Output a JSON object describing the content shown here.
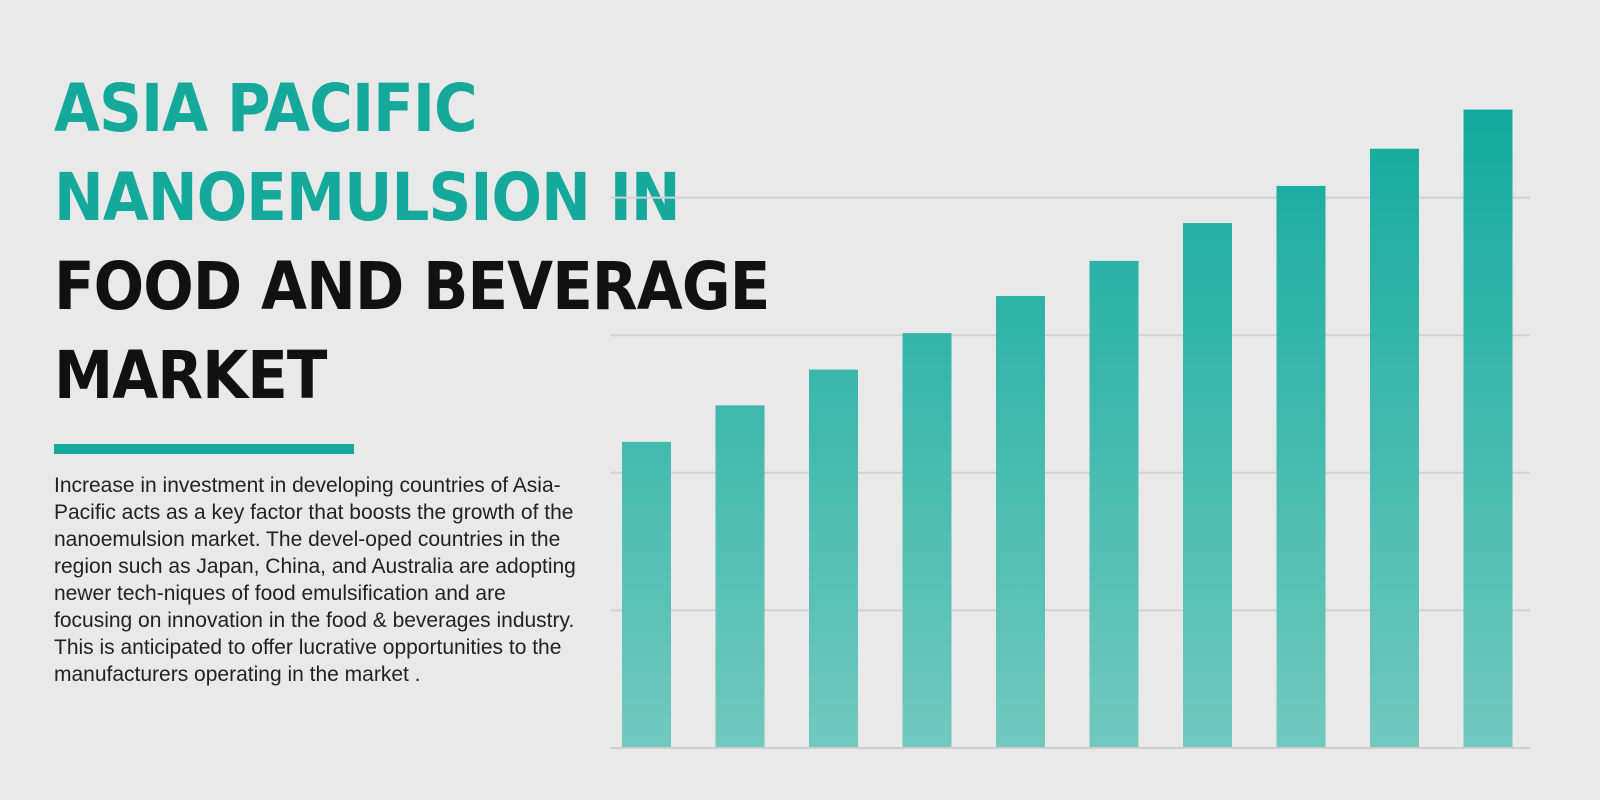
{
  "title": {
    "lines_accent": [
      "ASIA PACIFIC",
      "NANOEMULSION IN"
    ],
    "lines_dark": [
      "FOOD AND BEVERAGE",
      "MARKET"
    ]
  },
  "description": "Increase in investment in developing countries of Asia-Pacific acts as a key factor that boosts the growth of the nanoemulsion market. The devel-oped countries in the region such as Japan, China, and Australia are adopting newer tech-niques of food emulsification and are focusing on innovation in the food & beverages industry. This is anticipated to offer lucrative opportunities to the manufacturers operating in the market .",
  "colors": {
    "accent": "#14a99a",
    "bar_top": "#0aa89a",
    "bar_bottom": "#72c9be",
    "background": "#e9e9e9",
    "dark_text": "#111111"
  },
  "chart_data": {
    "type": "bar",
    "categories": [
      "",
      "",
      "",
      "",
      "",
      "",
      "",
      "",
      "",
      ""
    ],
    "values": [
      44.5,
      49.8,
      55.0,
      60.3,
      65.7,
      70.8,
      76.3,
      81.7,
      87.1,
      92.8
    ],
    "title": "",
    "xlabel": "",
    "ylabel": "",
    "ylim": [
      0,
      100
    ],
    "gridlines": [
      20,
      40,
      60,
      80
    ],
    "grid": true,
    "legend": "none"
  }
}
